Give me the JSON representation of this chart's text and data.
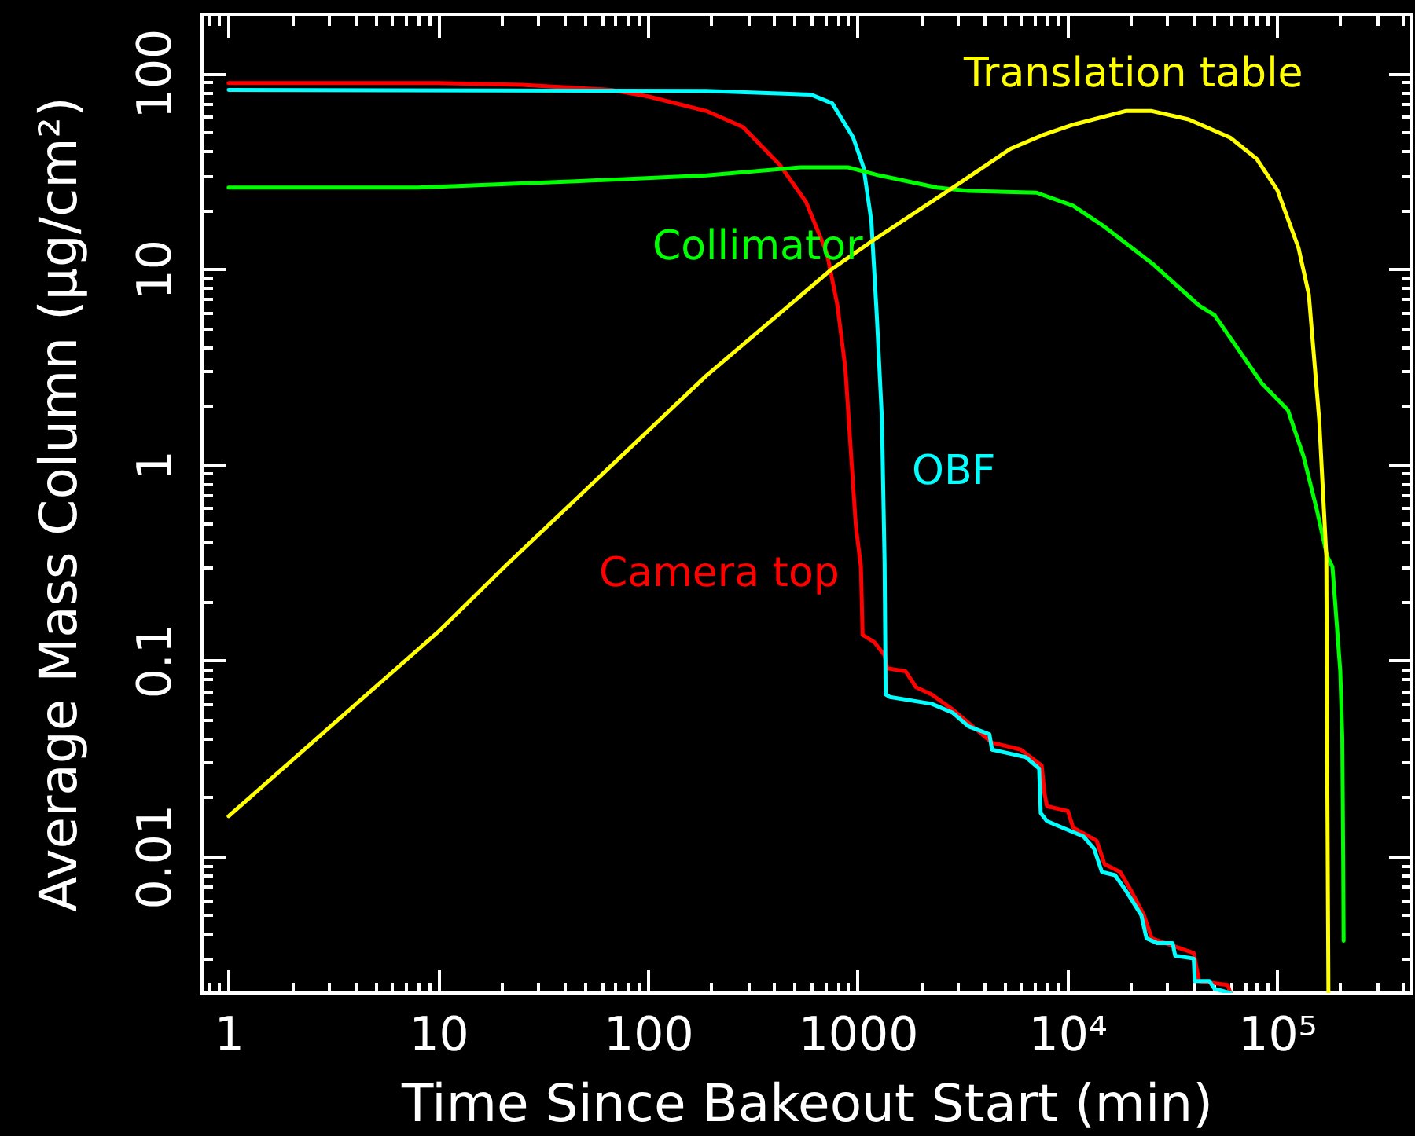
{
  "chart_data": {
    "type": "line",
    "log": "xy",
    "xlabel": "Time Since Bakeout Start (min)",
    "ylabel": "Average Mass Column (μg/cm²)",
    "xlim": [
      0.74,
      440000
    ],
    "ylim": [
      0.002,
      200
    ],
    "xticks": [
      {
        "value": 0.8,
        "label": null
      },
      {
        "value": 0.9,
        "label": null
      },
      1,
      {
        "value": 2,
        "label": null
      },
      {
        "value": 3,
        "label": null
      },
      {
        "value": 4,
        "label": null
      },
      {
        "value": 5,
        "label": null
      },
      {
        "value": 6,
        "label": null
      },
      {
        "value": 7,
        "label": null
      },
      {
        "value": 8,
        "label": null
      },
      {
        "value": 9,
        "label": null
      },
      10,
      {
        "value": 20,
        "label": null
      },
      {
        "value": 30,
        "label": null
      },
      {
        "value": 40,
        "label": null
      },
      {
        "value": 50,
        "label": null
      },
      {
        "value": 60,
        "label": null
      },
      {
        "value": 70,
        "label": null
      },
      {
        "value": 80,
        "label": null
      },
      {
        "value": 90,
        "label": null
      },
      100,
      {
        "value": 200,
        "label": null
      },
      {
        "value": 300,
        "label": null
      },
      {
        "value": 400,
        "label": null
      },
      {
        "value": 500,
        "label": null
      },
      {
        "value": 600,
        "label": null
      },
      {
        "value": 700,
        "label": null
      },
      {
        "value": 800,
        "label": null
      },
      {
        "value": 900,
        "label": null
      },
      1000,
      {
        "value": 2000,
        "label": null
      },
      {
        "value": 3000,
        "label": null
      },
      {
        "value": 4000,
        "label": null
      },
      {
        "value": 5000,
        "label": null
      },
      {
        "value": 6000,
        "label": null
      },
      {
        "value": 7000,
        "label": null
      },
      {
        "value": 8000,
        "label": null
      },
      {
        "value": 9000,
        "label": null
      },
      {
        "value": 10000,
        "label": "10⁴"
      },
      {
        "value": 20000,
        "label": null
      },
      {
        "value": 30000,
        "label": null
      },
      {
        "value": 40000,
        "label": null
      },
      {
        "value": 50000,
        "label": null
      },
      {
        "value": 60000,
        "label": null
      },
      {
        "value": 70000,
        "label": null
      },
      {
        "value": 80000,
        "label": null
      },
      {
        "value": 90000,
        "label": null
      },
      {
        "value": 100000,
        "label": "10⁵"
      },
      {
        "value": 200000,
        "label": null
      },
      {
        "value": 300000,
        "label": null
      },
      {
        "value": 400000,
        "label": null
      }
    ],
    "yticks": [
      {
        "value": 0.003,
        "label": null
      },
      {
        "value": 0.004,
        "label": null
      },
      {
        "value": 0.005,
        "label": null
      },
      {
        "value": 0.006,
        "label": null
      },
      {
        "value": 0.007,
        "label": null
      },
      {
        "value": 0.008,
        "label": null
      },
      {
        "value": 0.009,
        "label": null
      },
      0.01,
      {
        "value": 0.02,
        "label": null
      },
      {
        "value": 0.03,
        "label": null
      },
      {
        "value": 0.04,
        "label": null
      },
      {
        "value": 0.05,
        "label": null
      },
      {
        "value": 0.06,
        "label": null
      },
      {
        "value": 0.07,
        "label": null
      },
      {
        "value": 0.08,
        "label": null
      },
      {
        "value": 0.09,
        "label": null
      },
      0.1,
      {
        "value": 0.2,
        "label": null
      },
      {
        "value": 0.3,
        "label": null
      },
      {
        "value": 0.4,
        "label": null
      },
      {
        "value": 0.5,
        "label": null
      },
      {
        "value": 0.6,
        "label": null
      },
      {
        "value": 0.7,
        "label": null
      },
      {
        "value": 0.8,
        "label": null
      },
      {
        "value": 0.9,
        "label": null
      },
      1,
      {
        "value": 2,
        "label": null
      },
      {
        "value": 3,
        "label": null
      },
      {
        "value": 4,
        "label": null
      },
      {
        "value": 5,
        "label": null
      },
      {
        "value": 6,
        "label": null
      },
      {
        "value": 7,
        "label": null
      },
      {
        "value": 8,
        "label": null
      },
      {
        "value": 9,
        "label": null
      },
      10,
      {
        "value": 20,
        "label": null
      },
      {
        "value": 30,
        "label": null
      },
      {
        "value": 40,
        "label": null
      },
      {
        "value": 50,
        "label": null
      },
      {
        "value": 60,
        "label": null
      },
      {
        "value": 70,
        "label": null
      },
      {
        "value": 80,
        "label": null
      },
      {
        "value": 90,
        "label": null
      },
      100
    ],
    "series": [
      {
        "name": "Camera top",
        "color": "#ff0000",
        "x": [
          1,
          10,
          25,
          67,
          100,
          190,
          284,
          425,
          567,
          714,
          801,
          874,
          925,
          980,
          1037,
          1056,
          1200,
          1345,
          1384,
          1693,
          1897,
          2254,
          2845,
          3380,
          4376,
          6000,
          7550,
          7780,
          8000,
          10070,
          10660,
          13800,
          15060,
          17900,
          20100,
          23200,
          25300,
          40100,
          42500,
          58200,
          60000
        ],
        "values": [
          89,
          89,
          87,
          82,
          76,
          64,
          53,
          34,
          22,
          12,
          6.5,
          3.1,
          1.24,
          0.49,
          0.3,
          0.135,
          0.124,
          0.106,
          0.091,
          0.088,
          0.073,
          0.067,
          0.056,
          0.048,
          0.038,
          0.035,
          0.029,
          0.021,
          0.018,
          0.017,
          0.014,
          0.012,
          0.0091,
          0.0083,
          0.0067,
          0.005,
          0.0038,
          0.0032,
          0.0023,
          0.0022,
          0.002
        ]
      },
      {
        "name": "OBF",
        "color": "#00ffff",
        "x": [
          1,
          190,
          601,
          757,
          951,
          1067,
          1163,
          1234,
          1306,
          1345,
          1360,
          1425,
          2254,
          2845,
          3380,
          4250,
          4376,
          6350,
          7340,
          7470,
          8000,
          11960,
          13430,
          14630,
          16900,
          18970,
          22540,
          23880,
          26800,
          31800,
          32700,
          40100,
          40550,
          47600,
          50400,
          59900
        ],
        "values": [
          82,
          81,
          77.5,
          70,
          47,
          33,
          17.5,
          5.8,
          1.7,
          0.31,
          0.067,
          0.065,
          0.06,
          0.054,
          0.046,
          0.042,
          0.035,
          0.032,
          0.028,
          0.0166,
          0.0151,
          0.0126,
          0.0109,
          0.0083,
          0.008,
          0.0067,
          0.005,
          0.0038,
          0.0036,
          0.0036,
          0.0031,
          0.003,
          0.0023,
          0.0023,
          0.0021,
          0.002
        ]
      },
      {
        "name": "Collimator",
        "color": "#00ff00",
        "x": [
          1,
          8,
          45,
          190,
          535,
          899,
          1270,
          2390,
          3380,
          7130,
          10660,
          15060,
          25300,
          42500,
          50400,
          84700,
          112800,
          134000,
          154800,
          173600,
          184000,
          200500,
          205000,
          207000,
          208000
        ],
        "values": [
          26,
          26,
          28,
          30,
          33,
          33,
          30,
          26,
          25,
          24.5,
          21,
          16.4,
          10.7,
          6.5,
          5.8,
          2.6,
          1.9,
          1.1,
          0.59,
          0.34,
          0.3,
          0.088,
          0.04,
          0.0096,
          0.0037
        ]
      },
      {
        "name": "Translation table",
        "color": "#ffff00",
        "x": [
          1,
          3.2,
          10,
          21.3,
          190,
          756,
          1199,
          2845,
          5350,
          7550,
          10660,
          18970,
          25300,
          37850,
          59900,
          80000,
          100500,
          126700,
          141900,
          159000,
          172000,
          173500,
          176000
        ],
        "values": [
          0.016,
          0.048,
          0.14,
          0.31,
          2.85,
          10,
          14.1,
          26,
          41,
          48,
          54.5,
          64,
          64,
          58,
          46.8,
          36.5,
          25.2,
          12.8,
          7.4,
          1.7,
          0.34,
          0.035,
          0.002
        ]
      }
    ]
  }
}
